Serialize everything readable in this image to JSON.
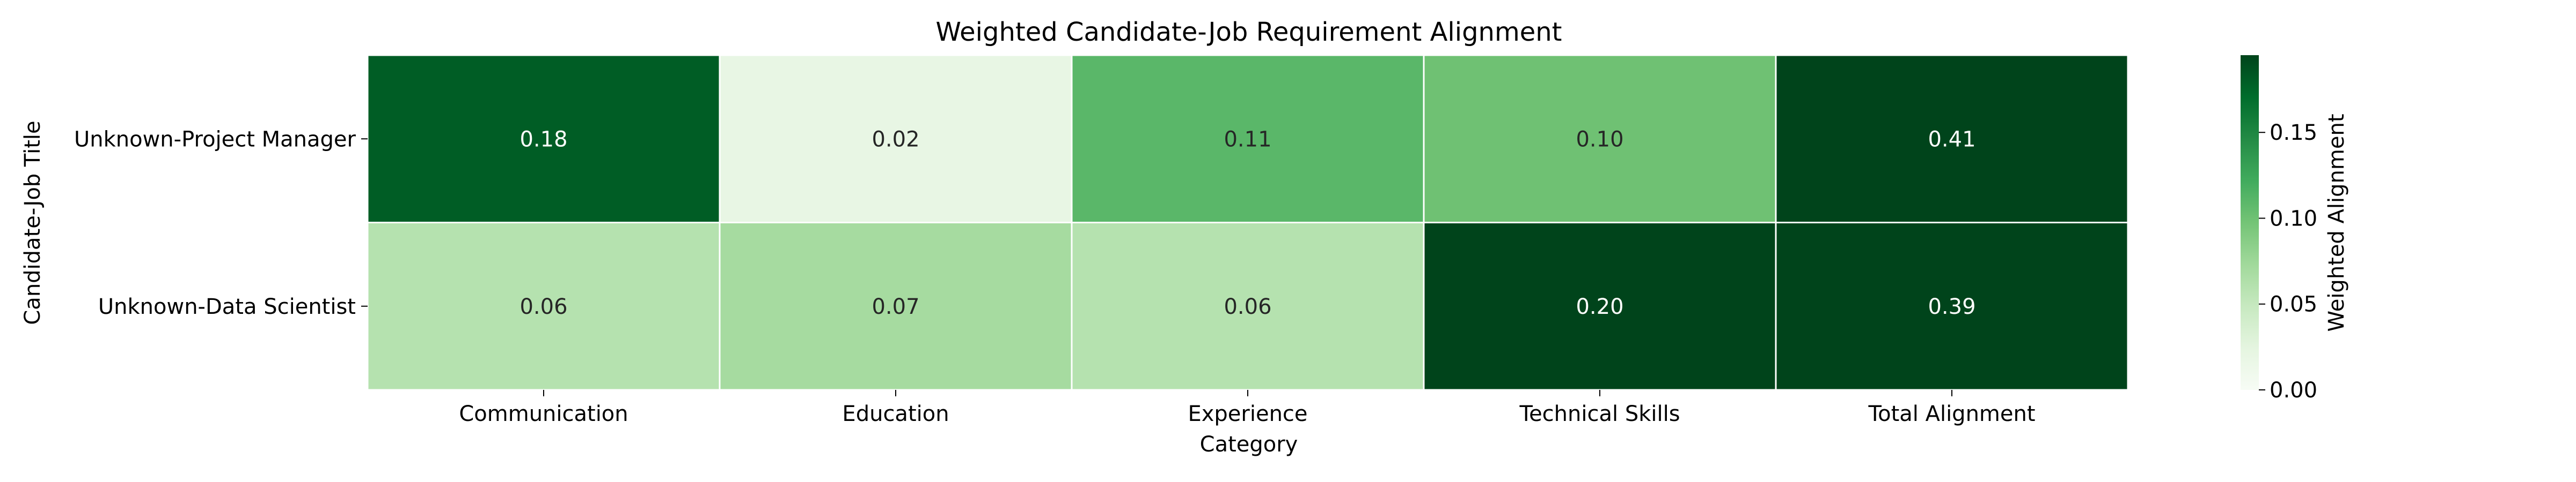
{
  "chart_data": {
    "type": "heatmap",
    "title": "Weighted Candidate-Job Requirement Alignment",
    "xlabel": "Category",
    "ylabel": "Candidate-Job Title",
    "x_categories": [
      "Communication",
      "Education",
      "Experience",
      "Technical Skills",
      "Total Alignment"
    ],
    "y_categories": [
      "Unknown-Project Manager",
      "Unknown-Data Scientist"
    ],
    "values": [
      [
        0.18,
        0.02,
        0.11,
        0.1,
        0.41
      ],
      [
        0.06,
        0.07,
        0.06,
        0.2,
        0.39
      ]
    ],
    "colorscale": "Greens",
    "vmin": 0.0,
    "vmax": 0.195,
    "colorbar": {
      "label": "Weighted Alignment",
      "ticks": [
        0.0,
        0.05,
        0.1,
        0.15
      ],
      "tick_labels": [
        "0.00",
        "0.05",
        "0.10",
        "0.15"
      ]
    },
    "annotation_format": "0.00",
    "grid": false,
    "cell_border_color": "#ffffff"
  }
}
